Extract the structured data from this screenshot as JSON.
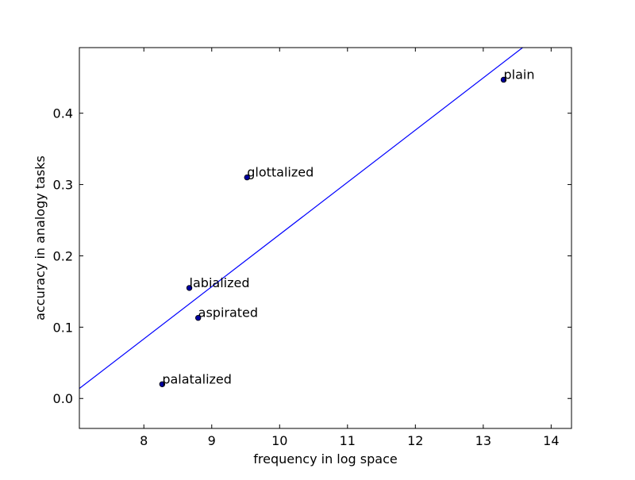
{
  "chart_data": {
    "type": "scatter",
    "title": "",
    "xlabel": "frequency in log space",
    "ylabel": "accuracy in analogy tasks",
    "xlim": [
      7.05,
      14.3
    ],
    "ylim": [
      -0.042,
      0.492
    ],
    "xticks": [
      8,
      9,
      10,
      11,
      12,
      13,
      14
    ],
    "yticks": [
      0.0,
      0.1,
      0.2,
      0.3,
      0.4
    ],
    "xtick_labels": [
      "8",
      "9",
      "10",
      "11",
      "12",
      "13",
      "14"
    ],
    "ytick_labels": [
      "0.0",
      "0.1",
      "0.2",
      "0.3",
      "0.4"
    ],
    "grid": false,
    "legend": "none",
    "point_color": "#0000a0",
    "line_color": "#0000ff",
    "points": [
      {
        "label": "plain",
        "x": 13.3,
        "y": 0.447
      },
      {
        "label": "glottalized",
        "x": 9.52,
        "y": 0.31
      },
      {
        "label": "labialized",
        "x": 8.67,
        "y": 0.155
      },
      {
        "label": "aspirated",
        "x": 8.8,
        "y": 0.113
      },
      {
        "label": "palatalized",
        "x": 8.27,
        "y": 0.02
      }
    ],
    "fit_line": {
      "x": [
        7.05,
        13.58
      ],
      "y": [
        0.014,
        0.492
      ]
    }
  }
}
